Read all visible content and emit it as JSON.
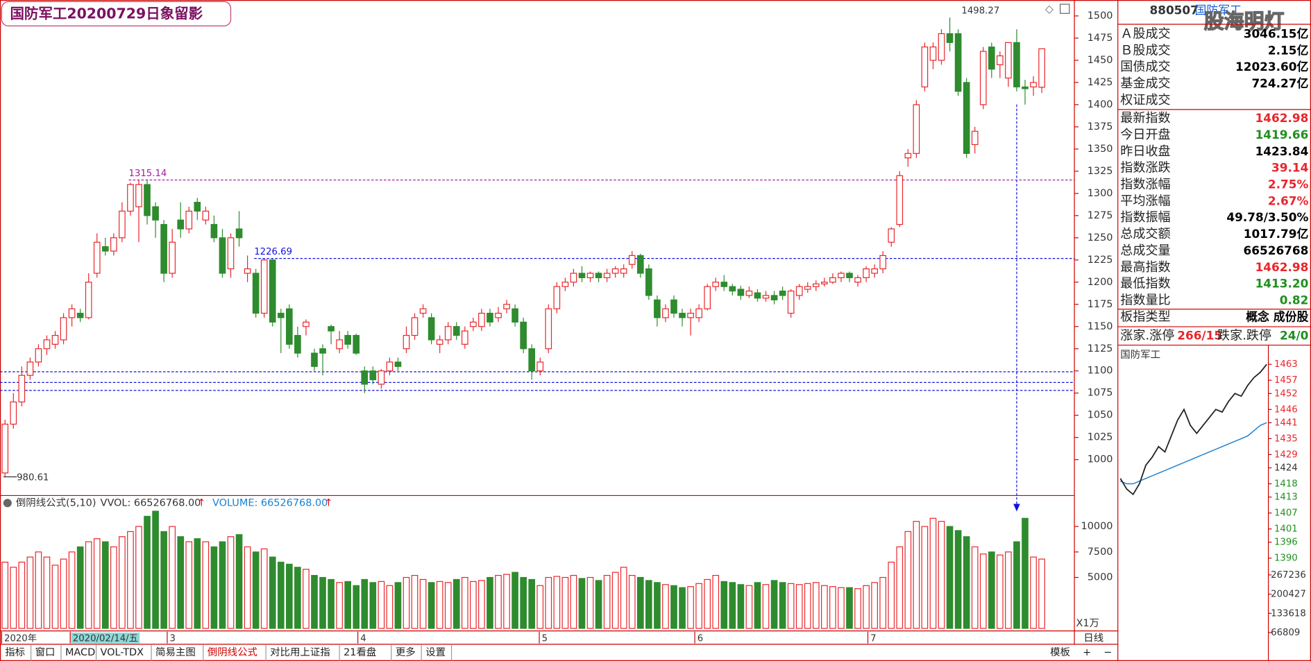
{
  "header": {
    "title": "国防军工20200729日象留影"
  },
  "chart_data": {
    "type": "candlestick",
    "ylim": [
      960.5,
      1513.2
    ],
    "yticks": [
      1000,
      1025,
      1050,
      1075,
      1100,
      1125,
      1150,
      1175,
      1200,
      1225,
      1250,
      1275,
      1300,
      1325,
      1350,
      1375,
      1400,
      1425,
      1450,
      1475,
      1500
    ],
    "up_color": "#e8262b",
    "down_color": "#2e8b2e",
    "open": [
      985,
      1040,
      1065,
      1095,
      1110,
      1125,
      1130,
      1135,
      1160,
      1165,
      1160,
      1210,
      1240,
      1235,
      1250,
      1280,
      1285,
      1310,
      1285,
      1265,
      1210,
      1270,
      1260,
      1290,
      1270,
      1265,
      1250,
      1215,
      1260,
      1210,
      1210,
      1165,
      1225,
      1165,
      1170,
      1140,
      1150,
      1120,
      1125,
      1150,
      1125,
      1140,
      1140,
      1100,
      1100,
      1085,
      1100,
      1110,
      1125,
      1140,
      1165,
      1160,
      1130,
      1135,
      1150,
      1130,
      1150,
      1150,
      1165,
      1160,
      1170,
      1170,
      1155,
      1125,
      1100,
      1125,
      1170,
      1195,
      1200,
      1210,
      1205,
      1210,
      1205,
      1210,
      1210,
      1220,
      1230,
      1215,
      1180,
      1160,
      1180,
      1165,
      1160,
      1160,
      1170,
      1195,
      1200,
      1195,
      1192,
      1185,
      1188,
      1182,
      1185,
      1190,
      1165,
      1185,
      1192,
      1195,
      1198,
      1200,
      1205,
      1210,
      1200,
      1205,
      1210,
      1215,
      1245,
      1265,
      1340,
      1345,
      1420,
      1450,
      1450,
      1480,
      1480,
      1425,
      1355,
      1400,
      1465,
      1445,
      1430,
      1470,
      1420,
      1420,
      1419.66
    ],
    "high": [
      1045,
      1075,
      1105,
      1115,
      1130,
      1140,
      1145,
      1165,
      1175,
      1170,
      1210,
      1255,
      1250,
      1255,
      1290,
      1312,
      1315.14,
      1315,
      1290,
      1270,
      1260,
      1290,
      1285,
      1295,
      1285,
      1275,
      1260,
      1255,
      1280,
      1230,
      1215,
      1226.69,
      1226,
      1170,
      1175,
      1150,
      1158,
      1125,
      1130,
      1152,
      1145,
      1145,
      1142,
      1105,
      1105,
      1102,
      1115,
      1115,
      1150,
      1165,
      1175,
      1165,
      1140,
      1155,
      1155,
      1150,
      1160,
      1170,
      1170,
      1172,
      1180,
      1175,
      1160,
      1130,
      1115,
      1175,
      1200,
      1205,
      1215,
      1218,
      1212,
      1212,
      1215,
      1218,
      1220,
      1235,
      1232,
      1220,
      1185,
      1175,
      1185,
      1170,
      1170,
      1175,
      1198,
      1205,
      1208,
      1198,
      1196,
      1195,
      1192,
      1190,
      1190,
      1195,
      1192,
      1198,
      1200,
      1202,
      1205,
      1210,
      1212,
      1212,
      1208,
      1218,
      1220,
      1235,
      1262,
      1325,
      1350,
      1405,
      1470,
      1470,
      1485,
      1498.27,
      1485,
      1430,
      1375,
      1465,
      1470,
      1460,
      1470,
      1485,
      1428,
      1432,
      1462.98
    ],
    "low": [
      980.61,
      1035,
      1060,
      1090,
      1105,
      1118,
      1125,
      1130,
      1150,
      1155,
      1158,
      1205,
      1230,
      1230,
      1245,
      1275,
      1245,
      1265,
      1250,
      1200,
      1205,
      1250,
      1255,
      1270,
      1265,
      1245,
      1205,
      1205,
      1240,
      1200,
      1160,
      1160,
      1150,
      1120,
      1125,
      1115,
      1140,
      1100,
      1095,
      1130,
      1120,
      1125,
      1118,
      1075,
      1085,
      1080,
      1095,
      1100,
      1120,
      1135,
      1160,
      1130,
      1120,
      1130,
      1135,
      1125,
      1145,
      1145,
      1150,
      1155,
      1165,
      1150,
      1120,
      1090,
      1095,
      1120,
      1165,
      1190,
      1195,
      1200,
      1200,
      1200,
      1200,
      1205,
      1205,
      1215,
      1205,
      1180,
      1150,
      1155,
      1160,
      1150,
      1140,
      1155,
      1168,
      1190,
      1190,
      1185,
      1180,
      1182,
      1178,
      1178,
      1175,
      1180,
      1160,
      1180,
      1188,
      1190,
      1195,
      1198,
      1200,
      1200,
      1195,
      1200,
      1205,
      1210,
      1240,
      1262,
      1330,
      1340,
      1415,
      1440,
      1445,
      1460,
      1410,
      1340,
      1345,
      1395,
      1430,
      1430,
      1420,
      1415,
      1400,
      1410,
      1413.2
    ],
    "close": [
      1040,
      1065,
      1095,
      1110,
      1125,
      1135,
      1140,
      1160,
      1170,
      1160,
      1200,
      1245,
      1235,
      1250,
      1280,
      1310,
      1310,
      1275,
      1270,
      1210,
      1245,
      1260,
      1280,
      1280,
      1280,
      1250,
      1210,
      1250,
      1250,
      1215,
      1165,
      1225,
      1155,
      1160,
      1130,
      1120,
      1155,
      1105,
      1120,
      1145,
      1135,
      1130,
      1120,
      1085,
      1090,
      1100,
      1110,
      1105,
      1140,
      1160,
      1170,
      1135,
      1135,
      1150,
      1140,
      1145,
      1155,
      1165,
      1155,
      1165,
      1175,
      1155,
      1125,
      1100,
      1110,
      1170,
      1195,
      1200,
      1210,
      1205,
      1210,
      1205,
      1210,
      1215,
      1215,
      1230,
      1210,
      1185,
      1160,
      1170,
      1165,
      1160,
      1165,
      1170,
      1195,
      1200,
      1195,
      1190,
      1185,
      1190,
      1182,
      1185,
      1180,
      1185,
      1190,
      1195,
      1195,
      1198,
      1200,
      1205,
      1210,
      1205,
      1205,
      1215,
      1215,
      1230,
      1260,
      1320,
      1345,
      1400,
      1465,
      1465,
      1480,
      1470,
      1415,
      1345,
      1370,
      1460,
      1440,
      1455,
      1470,
      1420,
      1418,
      1425,
      1462.98
    ],
    "peak_labels": [
      1498.27,
      1315.14,
      1226.69
    ],
    "low_label": 980.61,
    "hlines": [
      {
        "value": 1315.14,
        "color": "#a020a0"
      },
      {
        "value": 1226.69,
        "color": "#1010e0"
      },
      {
        "value": 1099,
        "color": "#1010e0"
      },
      {
        "value": 1087,
        "color": "#1010e0"
      },
      {
        "value": 1078,
        "color": "#1010e0"
      }
    ],
    "date_labels": [
      "2020年",
      "2020/02/14/五",
      "3",
      "4",
      "5",
      "6",
      "7"
    ],
    "indicator": {
      "name": "倒阴线公式(5,10)",
      "vvol": "VVOL: 66526768.00",
      "volume": "VOLUME: 66526768.00",
      "arrow": "↑"
    },
    "volume": {
      "name": "VOLUME",
      "unit": "X1万",
      "ylim": [
        0,
        12790
      ],
      "yticks": [
        5000,
        7500,
        10000
      ],
      "values": [
        6500,
        6000,
        6500,
        7000,
        7500,
        7000,
        6200,
        6800,
        7500,
        8000,
        8500,
        8800,
        8500,
        8000,
        9000,
        9500,
        10000,
        11000,
        11500,
        9500,
        10000,
        9000,
        8500,
        8800,
        8500,
        8000,
        8500,
        9000,
        9200,
        8000,
        7500,
        7800,
        7000,
        6500,
        6300,
        6000,
        5800,
        5200,
        5000,
        4800,
        4500,
        4600,
        4200,
        4800,
        4500,
        4600,
        4200,
        4500,
        5000,
        5200,
        4800,
        4500,
        4600,
        4500,
        4800,
        5000,
        4600,
        4700,
        5000,
        5200,
        5300,
        5500,
        5000,
        4800,
        4200,
        5000,
        5100,
        5000,
        5200,
        4900,
        5000,
        4700,
        5200,
        5500,
        6000,
        5200,
        5000,
        4700,
        4500,
        4300,
        4200,
        4000,
        4100,
        4400,
        4800,
        5200,
        4600,
        4500,
        4300,
        4200,
        4500,
        4300,
        4700,
        4500,
        4400,
        4300,
        4400,
        4500,
        4200,
        4100,
        4000,
        4000,
        3900,
        4200,
        4500,
        5000,
        6500,
        8000,
        9500,
        10500,
        10000,
        10800,
        10500,
        10000,
        9600,
        9000,
        8000,
        7300,
        7500,
        7200,
        7500,
        8500,
        10800,
        7000,
        6800
      ]
    }
  },
  "quote": {
    "code": "880507",
    "name": "国防军工",
    "watermark": "股海明灯",
    "rows": [
      {
        "label": "Ａ股成交",
        "value": "3046.15亿",
        "color": "#000"
      },
      {
        "label": "Ｂ股成交",
        "value": "2.15亿",
        "color": "#000"
      },
      {
        "label": "国债成交",
        "value": "12023.60亿",
        "color": "#000"
      },
      {
        "label": "基金成交",
        "value": "724.27亿",
        "color": "#000"
      },
      {
        "label": "权证成交",
        "value": "",
        "color": "#000"
      },
      {
        "label": "最新指数",
        "value": "1462.98",
        "color": "#e8262b"
      },
      {
        "label": "今日开盘",
        "value": "1419.66",
        "color": "#1f8f1f"
      },
      {
        "label": "昨日收盘",
        "value": "1423.84",
        "color": "#000"
      },
      {
        "label": "指数涨跌",
        "value": "39.14",
        "color": "#e8262b"
      },
      {
        "label": "指数涨幅",
        "value": "2.75%",
        "color": "#e8262b"
      },
      {
        "label": "平均涨幅",
        "value": "2.67%",
        "color": "#e8262b"
      },
      {
        "label": "指数振幅",
        "value": "49.78/3.50%",
        "color": "#000"
      },
      {
        "label": "总成交额",
        "value": "1017.79亿",
        "color": "#000"
      },
      {
        "label": "总成交量",
        "value": "66526768",
        "color": "#000"
      },
      {
        "label": "最高指数",
        "value": "1462.98",
        "color": "#e8262b"
      },
      {
        "label": "最低指数",
        "value": "1413.20",
        "color": "#1f8f1f"
      },
      {
        "label": "指数量比",
        "value": "0.82",
        "color": "#1f8f1f"
      },
      {
        "label": "板指类型",
        "value": "概念 成份股",
        "color": "#000"
      }
    ],
    "breadth": {
      "up_label": "涨家.涨停",
      "up_value": "266/15",
      "down_label": "跌家.跌停",
      "down_value": "24/0"
    }
  },
  "intraday": {
    "title": "国防军工",
    "ylim": [
      1386.2,
      1465.5
    ],
    "yticks": [
      1463,
      1457,
      1452,
      1446,
      1441,
      1435,
      1429,
      1424,
      1418,
      1413,
      1407,
      1401,
      1396,
      1390
    ],
    "price": [
      1420,
      1416,
      1414,
      1418,
      1425,
      1428,
      1432,
      1430,
      1436,
      1442,
      1446,
      1440,
      1437,
      1440,
      1443,
      1446,
      1445,
      1449,
      1452,
      1451,
      1455,
      1458,
      1460,
      1462.98
    ],
    "avg": [
      1419,
      1418,
      1418,
      1419,
      1420,
      1421,
      1422,
      1423,
      1424,
      1425,
      1426,
      1427,
      1428,
      1429,
      1430,
      1431,
      1432,
      1433,
      1434,
      1435,
      1436,
      1438,
      1440,
      1441
    ],
    "vol_ylim": [
      0,
      275950
    ],
    "vol_yticks": [
      267236,
      200427,
      133618,
      66809
    ]
  },
  "toolbar": {
    "tabs": [
      "指标",
      "窗口",
      "MACD",
      "VOL-TDX",
      "简易主图",
      "倒阴线公式",
      "对比用上证指",
      "21看盘",
      "更多",
      "设置"
    ],
    "right": [
      "模板",
      "日线",
      "+",
      "−"
    ]
  }
}
